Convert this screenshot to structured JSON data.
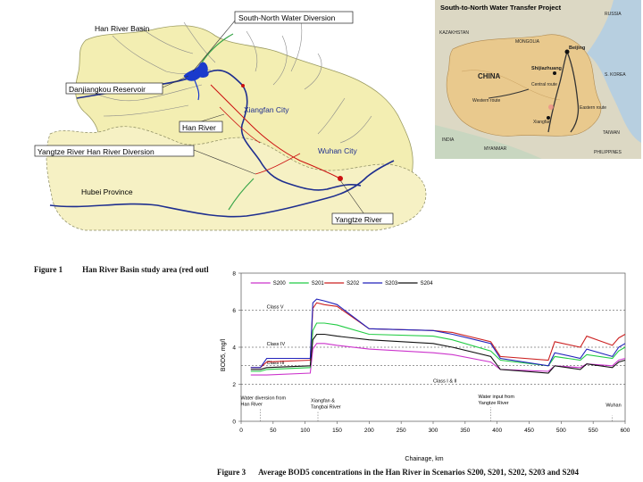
{
  "figure1": {
    "label": "Figure 1",
    "caption": "Han River Basin study area (red outl",
    "map_labels": {
      "basin": "Han River Basin",
      "diversion": "South-North Water Diversion",
      "reservoir": "Danjiangkou Reservoir",
      "xiangfan": "Xiangfan City",
      "han_river": "Han River",
      "yangtze_han": "Yangtze River Han River Diversion",
      "wuhan": "Wuhan City",
      "hubei": "Hubei Province",
      "yangtze": "Yangtze River"
    },
    "inset": {
      "title": "South-to-North Water Transfer Project",
      "labels": {
        "russia": "RUSSIA",
        "kazakhstan": "KAZAKHSTAN",
        "mongolia": "MONGOLIA",
        "china": "CHINA",
        "beijing": "Beijing",
        "shijiazhuang": "Shijiazhuang",
        "central_route": "Central route",
        "western_route": "Western route",
        "eastern_route": "Eastern route",
        "xiangfan": "Xiangfan",
        "india": "INDIA",
        "myanmar": "MYANMAR",
        "taiwan": "TAIWAN",
        "philippines": "PHILIPPINES",
        "korea": "S. KOREA"
      }
    }
  },
  "figure3": {
    "label": "Figure 3",
    "caption": "Average BOD5 concentrations in the Han River in Scenarios S200, S201, S202, S203 and S204"
  },
  "chart_data": {
    "type": "line",
    "title": "",
    "xlabel": "Chainage, km",
    "ylabel": "BOD5, mg/l",
    "xlim": [
      0,
      600
    ],
    "ylim": [
      0,
      8
    ],
    "xticks": [
      0,
      50,
      100,
      150,
      200,
      250,
      300,
      350,
      400,
      450,
      500,
      550,
      600
    ],
    "yticks": [
      0,
      2,
      4,
      6,
      8
    ],
    "grid": false,
    "legend_position": "top",
    "class_lines": [
      {
        "label": "Class V",
        "value": 6
      },
      {
        "label": "Class IV",
        "value": 4
      },
      {
        "label": "Class III",
        "value": 3
      },
      {
        "label": "Class I & II",
        "value": 2
      }
    ],
    "annotations": [
      {
        "text": "Water diversion from Han River",
        "x": 30
      },
      {
        "text": "Xiangfan & Tangbai River",
        "x": 120
      },
      {
        "text": "Water input from Yangtze River",
        "x": 390
      },
      {
        "text": "Wuhan",
        "x": 580
      }
    ],
    "series": [
      {
        "name": "S200",
        "color": "#cc33cc",
        "x": [
          15,
          20,
          30,
          40,
          108,
          112,
          118,
          130,
          150,
          200,
          300,
          330,
          390,
          405,
          480,
          490,
          530,
          540,
          580,
          590,
          600
        ],
        "y": [
          2.5,
          2.5,
          2.5,
          2.5,
          2.6,
          3.9,
          4.2,
          4.2,
          4.1,
          3.9,
          3.7,
          3.6,
          3.2,
          2.8,
          2.7,
          3.0,
          2.9,
          3.1,
          3.0,
          3.3,
          3.4
        ]
      },
      {
        "name": "S201",
        "color": "#22cc44",
        "x": [
          15,
          20,
          30,
          40,
          108,
          112,
          118,
          130,
          150,
          200,
          300,
          330,
          390,
          405,
          480,
          490,
          530,
          540,
          580,
          590,
          600
        ],
        "y": [
          2.7,
          2.7,
          2.7,
          2.8,
          2.9,
          4.9,
          5.3,
          5.3,
          5.2,
          4.7,
          4.6,
          4.4,
          3.8,
          3.3,
          3.0,
          3.5,
          3.3,
          3.6,
          3.4,
          3.8,
          4.0
        ]
      },
      {
        "name": "S202",
        "color": "#cc2222",
        "x": [
          15,
          20,
          30,
          40,
          108,
          112,
          118,
          130,
          150,
          200,
          300,
          330,
          390,
          405,
          480,
          490,
          530,
          540,
          580,
          590,
          600
        ],
        "y": [
          2.9,
          2.9,
          2.9,
          3.2,
          3.3,
          6.1,
          6.4,
          6.3,
          6.2,
          5.0,
          4.9,
          4.8,
          4.3,
          3.5,
          3.3,
          4.3,
          4.0,
          4.6,
          4.1,
          4.5,
          4.7
        ]
      },
      {
        "name": "S203",
        "color": "#2222bb",
        "x": [
          15,
          20,
          30,
          40,
          108,
          112,
          118,
          130,
          150,
          200,
          300,
          330,
          390,
          405,
          480,
          490,
          530,
          540,
          580,
          590,
          600
        ],
        "y": [
          2.9,
          2.9,
          2.9,
          3.4,
          3.4,
          6.4,
          6.6,
          6.5,
          6.3,
          5.0,
          4.9,
          4.7,
          4.2,
          3.4,
          3.0,
          3.7,
          3.4,
          3.9,
          3.5,
          4.0,
          4.2
        ]
      },
      {
        "name": "S204",
        "color": "#111111",
        "x": [
          15,
          20,
          30,
          40,
          108,
          112,
          118,
          130,
          150,
          200,
          300,
          330,
          390,
          405,
          480,
          490,
          530,
          540,
          580,
          590,
          600
        ],
        "y": [
          2.8,
          2.8,
          2.8,
          2.9,
          3.0,
          4.4,
          4.7,
          4.7,
          4.6,
          4.4,
          4.2,
          4.0,
          3.5,
          2.8,
          2.6,
          3.0,
          2.8,
          3.1,
          2.9,
          3.2,
          3.3
        ]
      }
    ]
  },
  "colors": {
    "basin_fill": "#f3eeb2",
    "basin_stroke": "#9a9a60",
    "river": "#1f2f8f",
    "reservoir": "#1a3acc",
    "red": "#cc1111",
    "diversion_green": "#3aa64a"
  }
}
